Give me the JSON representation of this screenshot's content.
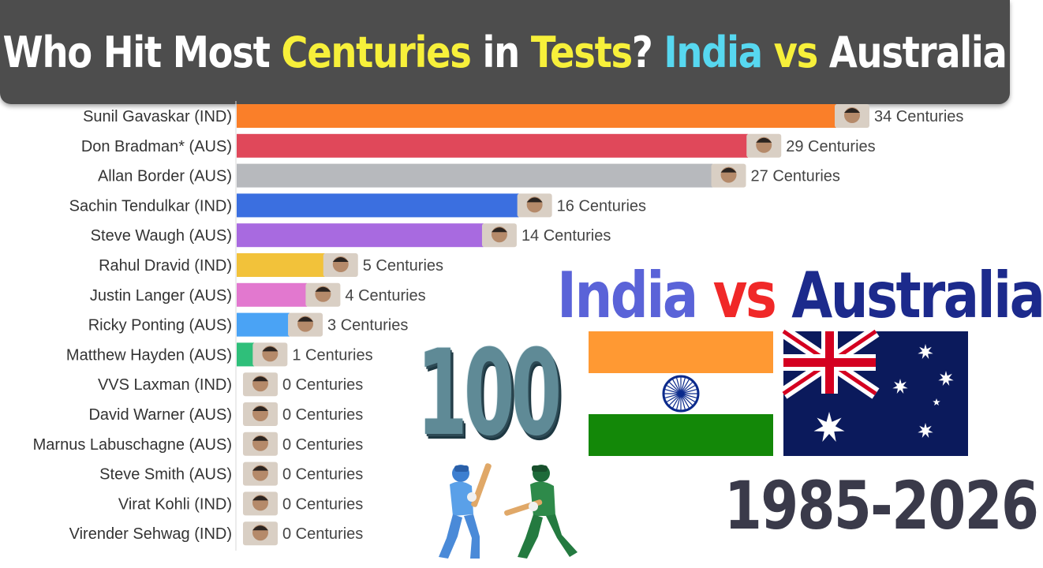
{
  "title": {
    "part1": "Who Hit Most ",
    "part2": "Centuries",
    "part3": " in ",
    "part4": "Tests",
    "part5": "? ",
    "part6": "India",
    "part7": " vs ",
    "part8": "Australia"
  },
  "colors": {
    "title_white": "#ffffff",
    "title_yellow": "#f7f03a",
    "title_cyan": "#57d8f0",
    "india_heading": "#5a63d8",
    "vs_heading": "#f02828",
    "australia_heading": "#1c2a8c",
    "flag_saffron": "#ff9933",
    "flag_green": "#138808",
    "flag_chakra": "#0b2a8c",
    "aus_blue": "#0b1a5c",
    "aus_red": "#d40020"
  },
  "heading": {
    "india": "India",
    "vs": " vs ",
    "australia": "Australia"
  },
  "years": "1985-2026",
  "big_number": "100",
  "chart_data": {
    "type": "bar",
    "orientation": "horizontal",
    "value_suffix": " Centuries",
    "categories": [
      "Sunil Gavaskar (IND)",
      "Don Bradman* (AUS)",
      "Allan Border (AUS)",
      "Sachin Tendulkar (IND)",
      "Steve Waugh (AUS)",
      "Rahul Dravid (IND)",
      "Justin Langer (AUS)",
      "Ricky Ponting (AUS)",
      "Matthew Hayden (AUS)",
      "VVS Laxman (IND)",
      "David Warner (AUS)",
      "Marnus Labuschagne (AUS)",
      "Steve Smith (AUS)",
      "Virat Kohli (IND)",
      "Virender Sehwag (IND)"
    ],
    "values": [
      34,
      29,
      27,
      16,
      14,
      5,
      4,
      3,
      1,
      0,
      0,
      0,
      0,
      0,
      0
    ],
    "bar_colors": [
      "#fa7f29",
      "#e0485a",
      "#b7b9bd",
      "#3b6fe0",
      "#a86ae0",
      "#f2c23a",
      "#e278cf",
      "#4aa3f5",
      "#2fbf7a",
      "#25b0c0",
      "#ffffff",
      "#ffffff",
      "#ffffff",
      "#ffffff",
      "#ffffff"
    ],
    "xlim": [
      0,
      34
    ],
    "grid": false,
    "legend": "none"
  }
}
